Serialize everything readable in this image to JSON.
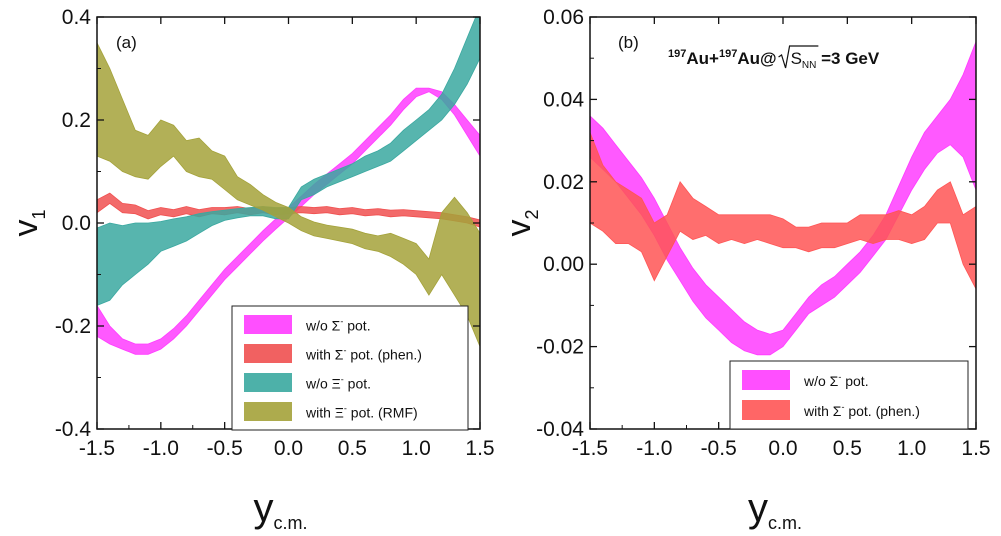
{
  "chart_data": [
    {
      "type": "area",
      "panel_label": "(a)",
      "xlabel_main": "y",
      "xlabel_sub": "c.m.",
      "ylabel_main": "v",
      "ylabel_sub": "1",
      "xlim": [
        -1.5,
        1.5
      ],
      "ylim": [
        -0.4,
        0.4
      ],
      "xticks": [
        "-1.5",
        "-1.0",
        "-0.5",
        "0.0",
        "0.5",
        "1.0",
        "1.5"
      ],
      "yticks": [
        "-0.4",
        "-0.2",
        "0.0",
        "0.2",
        "0.4"
      ],
      "legend_position": "bottom-right",
      "series": [
        {
          "name": "w/o Σ⁻ pot.",
          "legend_main": "w/o Σ",
          "legend_sup": "-",
          "legend_rest": " pot.",
          "color": "#ff3cff",
          "x": [
            -1.5,
            -1.4,
            -1.3,
            -1.2,
            -1.1,
            -1.0,
            -0.9,
            -0.8,
            -0.7,
            -0.6,
            -0.5,
            -0.4,
            -0.3,
            -0.2,
            -0.1,
            0.0,
            0.1,
            0.2,
            0.3,
            0.4,
            0.5,
            0.6,
            0.7,
            0.8,
            0.9,
            1.0,
            1.1,
            1.2,
            1.3,
            1.4,
            1.5
          ],
          "lower": [
            -0.22,
            -0.235,
            -0.245,
            -0.255,
            -0.255,
            -0.245,
            -0.225,
            -0.2,
            -0.17,
            -0.14,
            -0.11,
            -0.085,
            -0.06,
            -0.035,
            -0.012,
            0.01,
            0.032,
            0.055,
            0.075,
            0.095,
            0.115,
            0.14,
            0.165,
            0.19,
            0.22,
            0.245,
            0.255,
            0.24,
            0.21,
            0.17,
            0.13
          ],
          "upper": [
            -0.16,
            -0.2,
            -0.225,
            -0.235,
            -0.235,
            -0.225,
            -0.205,
            -0.18,
            -0.15,
            -0.12,
            -0.09,
            -0.065,
            -0.04,
            -0.015,
            0.008,
            0.03,
            0.052,
            0.075,
            0.095,
            0.115,
            0.135,
            0.16,
            0.185,
            0.21,
            0.24,
            0.262,
            0.262,
            0.255,
            0.23,
            0.2,
            0.17
          ]
        },
        {
          "name": "with Σ⁻ pot. (phen.)",
          "legend_main": "with Σ",
          "legend_sup": "-",
          "legend_rest": " pot. (phen.)",
          "color": "#f05050",
          "x": [
            -1.5,
            -1.4,
            -1.3,
            -1.2,
            -1.1,
            -1.0,
            -0.9,
            -0.8,
            -0.7,
            -0.6,
            -0.5,
            -0.4,
            -0.3,
            -0.2,
            -0.1,
            0.0,
            0.1,
            0.2,
            0.3,
            0.4,
            0.5,
            0.6,
            0.7,
            0.8,
            0.9,
            1.0,
            1.1,
            1.2,
            1.3,
            1.4,
            1.5
          ],
          "lower": [
            0.02,
            0.038,
            0.02,
            0.018,
            0.008,
            0.016,
            0.012,
            0.018,
            0.012,
            0.018,
            0.016,
            0.02,
            0.016,
            0.02,
            0.016,
            0.018,
            0.02,
            0.018,
            0.02,
            0.016,
            0.018,
            0.014,
            0.016,
            0.012,
            0.014,
            0.012,
            0.01,
            0.008,
            0.004,
            0.0,
            -0.008
          ],
          "upper": [
            0.045,
            0.058,
            0.038,
            0.035,
            0.024,
            0.03,
            0.026,
            0.032,
            0.026,
            0.03,
            0.03,
            0.032,
            0.028,
            0.032,
            0.028,
            0.03,
            0.032,
            0.03,
            0.032,
            0.028,
            0.03,
            0.026,
            0.028,
            0.025,
            0.026,
            0.024,
            0.022,
            0.02,
            0.016,
            0.012,
            0.006
          ]
        },
        {
          "name": "w/o Ξ⁻ pot.",
          "legend_main": "w/o Ξ",
          "legend_sup": "-",
          "legend_rest": " pot.",
          "color": "#3aa8a0",
          "x": [
            -1.5,
            -1.4,
            -1.3,
            -1.2,
            -1.1,
            -1.0,
            -0.9,
            -0.8,
            -0.7,
            -0.6,
            -0.5,
            -0.4,
            -0.3,
            -0.2,
            -0.1,
            0.0,
            0.1,
            0.2,
            0.3,
            0.4,
            0.5,
            0.6,
            0.7,
            0.8,
            0.9,
            1.0,
            1.1,
            1.2,
            1.3,
            1.4,
            1.5
          ],
          "lower": [
            -0.16,
            -0.15,
            -0.12,
            -0.1,
            -0.08,
            -0.055,
            -0.045,
            -0.035,
            -0.02,
            -0.005,
            0.005,
            0.01,
            0.014,
            0.014,
            0.008,
            0.008,
            0.045,
            0.055,
            0.07,
            0.08,
            0.09,
            0.1,
            0.11,
            0.12,
            0.14,
            0.16,
            0.18,
            0.2,
            0.23,
            0.27,
            0.32
          ],
          "upper": [
            -0.01,
            0.0,
            -0.005,
            0.0,
            0.0,
            0.003,
            0.008,
            0.012,
            0.018,
            0.022,
            0.025,
            0.028,
            0.03,
            0.032,
            0.03,
            0.03,
            0.07,
            0.085,
            0.095,
            0.105,
            0.115,
            0.13,
            0.14,
            0.155,
            0.18,
            0.2,
            0.22,
            0.25,
            0.3,
            0.36,
            0.42
          ]
        },
        {
          "name": "with Ξ⁻ pot. (RMF)",
          "legend_main": "with Ξ",
          "legend_sup": "-",
          "legend_rest": " pot. (RMF)",
          "color": "#a4a23a",
          "x": [
            -1.5,
            -1.4,
            -1.3,
            -1.2,
            -1.1,
            -1.0,
            -0.9,
            -0.8,
            -0.7,
            -0.6,
            -0.5,
            -0.4,
            -0.3,
            -0.2,
            -0.1,
            0.0,
            0.1,
            0.2,
            0.3,
            0.4,
            0.5,
            0.6,
            0.7,
            0.8,
            0.9,
            1.0,
            1.1,
            1.2,
            1.3,
            1.4,
            1.5
          ],
          "lower": [
            0.13,
            0.12,
            0.1,
            0.09,
            0.085,
            0.11,
            0.13,
            0.1,
            0.09,
            0.085,
            0.065,
            0.045,
            0.035,
            0.025,
            0.012,
            0.0,
            -0.015,
            -0.025,
            -0.03,
            -0.035,
            -0.04,
            -0.05,
            -0.055,
            -0.065,
            -0.08,
            -0.1,
            -0.14,
            -0.1,
            -0.14,
            -0.18,
            -0.24
          ],
          "upper": [
            0.35,
            0.3,
            0.24,
            0.18,
            0.17,
            0.2,
            0.19,
            0.16,
            0.165,
            0.14,
            0.13,
            0.09,
            0.075,
            0.055,
            0.04,
            0.03,
            0.012,
            0.002,
            -0.004,
            -0.008,
            -0.012,
            -0.02,
            -0.025,
            -0.02,
            -0.03,
            -0.04,
            -0.07,
            0.02,
            0.05,
            0.02,
            -0.02
          ]
        }
      ]
    },
    {
      "type": "area",
      "panel_label": "(b)",
      "annotation": "197Au+197Au@√SNN =3 GeV",
      "annotation_parts": {
        "sup1": "197",
        "mid1": "Au+",
        "sup2": "197",
        "mid2": "Au@",
        "sqrt_base": "S",
        "sqrt_sub": "NN",
        "tail": " =3 GeV"
      },
      "xlabel_main": "y",
      "xlabel_sub": "c.m.",
      "ylabel_main": "v",
      "ylabel_sub": "2",
      "xlim": [
        -1.5,
        1.5
      ],
      "ylim": [
        -0.04,
        0.06
      ],
      "xticks": [
        "-1.5",
        "-1.0",
        "-0.5",
        "0.0",
        "0.5",
        "1.0",
        "1.5"
      ],
      "yticks": [
        "-0.04",
        "-0.02",
        "0.00",
        "0.02",
        "0.04",
        "0.06"
      ],
      "legend_position": "bottom-right",
      "series": [
        {
          "name": "w/o Σ⁻ pot.",
          "legend_main": "w/o Σ",
          "legend_sup": "-",
          "legend_rest": " pot.",
          "color": "#ff3cff",
          "x": [
            -1.5,
            -1.4,
            -1.3,
            -1.2,
            -1.1,
            -1.0,
            -0.9,
            -0.8,
            -0.7,
            -0.6,
            -0.5,
            -0.4,
            -0.3,
            -0.2,
            -0.1,
            0.0,
            0.1,
            0.2,
            0.3,
            0.4,
            0.5,
            0.6,
            0.7,
            0.8,
            0.9,
            1.0,
            1.1,
            1.2,
            1.3,
            1.4,
            1.5
          ],
          "lower": [
            0.026,
            0.023,
            0.02,
            0.016,
            0.012,
            0.007,
            0.001,
            -0.004,
            -0.009,
            -0.013,
            -0.016,
            -0.019,
            -0.021,
            -0.022,
            -0.022,
            -0.02,
            -0.016,
            -0.012,
            -0.01,
            -0.008,
            -0.005,
            -0.002,
            0.002,
            0.006,
            0.012,
            0.018,
            0.023,
            0.027,
            0.029,
            0.026,
            0.018
          ],
          "upper": [
            0.036,
            0.033,
            0.029,
            0.025,
            0.021,
            0.016,
            0.01,
            0.004,
            -0.001,
            -0.005,
            -0.008,
            -0.011,
            -0.014,
            -0.016,
            -0.017,
            -0.016,
            -0.012,
            -0.008,
            -0.005,
            -0.003,
            0.0,
            0.003,
            0.007,
            0.012,
            0.019,
            0.026,
            0.032,
            0.036,
            0.04,
            0.046,
            0.054
          ]
        },
        {
          "name": "with Σ⁻ pot. (phen.)",
          "legend_main": "with Σ",
          "legend_sup": "-",
          "legend_rest": " pot. (phen.)",
          "color": "#ff5555",
          "x": [
            -1.5,
            -1.4,
            -1.3,
            -1.2,
            -1.1,
            -1.0,
            -0.9,
            -0.8,
            -0.7,
            -0.6,
            -0.5,
            -0.4,
            -0.3,
            -0.2,
            -0.1,
            0.0,
            0.1,
            0.2,
            0.3,
            0.4,
            0.5,
            0.6,
            0.7,
            0.8,
            0.9,
            1.0,
            1.1,
            1.2,
            1.3,
            1.4,
            1.5
          ],
          "lower": [
            0.01,
            0.008,
            0.005,
            0.005,
            0.003,
            -0.004,
            0.002,
            0.008,
            0.006,
            0.007,
            0.005,
            0.006,
            0.005,
            0.006,
            0.005,
            0.004,
            0.004,
            0.003,
            0.004,
            0.004,
            0.005,
            0.006,
            0.005,
            0.006,
            0.006,
            0.005,
            0.006,
            0.01,
            0.01,
            0.0,
            -0.006
          ],
          "upper": [
            0.032,
            0.024,
            0.02,
            0.018,
            0.016,
            0.01,
            0.012,
            0.02,
            0.016,
            0.014,
            0.012,
            0.012,
            0.012,
            0.012,
            0.012,
            0.011,
            0.009,
            0.009,
            0.01,
            0.01,
            0.01,
            0.012,
            0.012,
            0.012,
            0.013,
            0.012,
            0.014,
            0.018,
            0.02,
            0.012,
            0.014
          ]
        }
      ]
    }
  ]
}
